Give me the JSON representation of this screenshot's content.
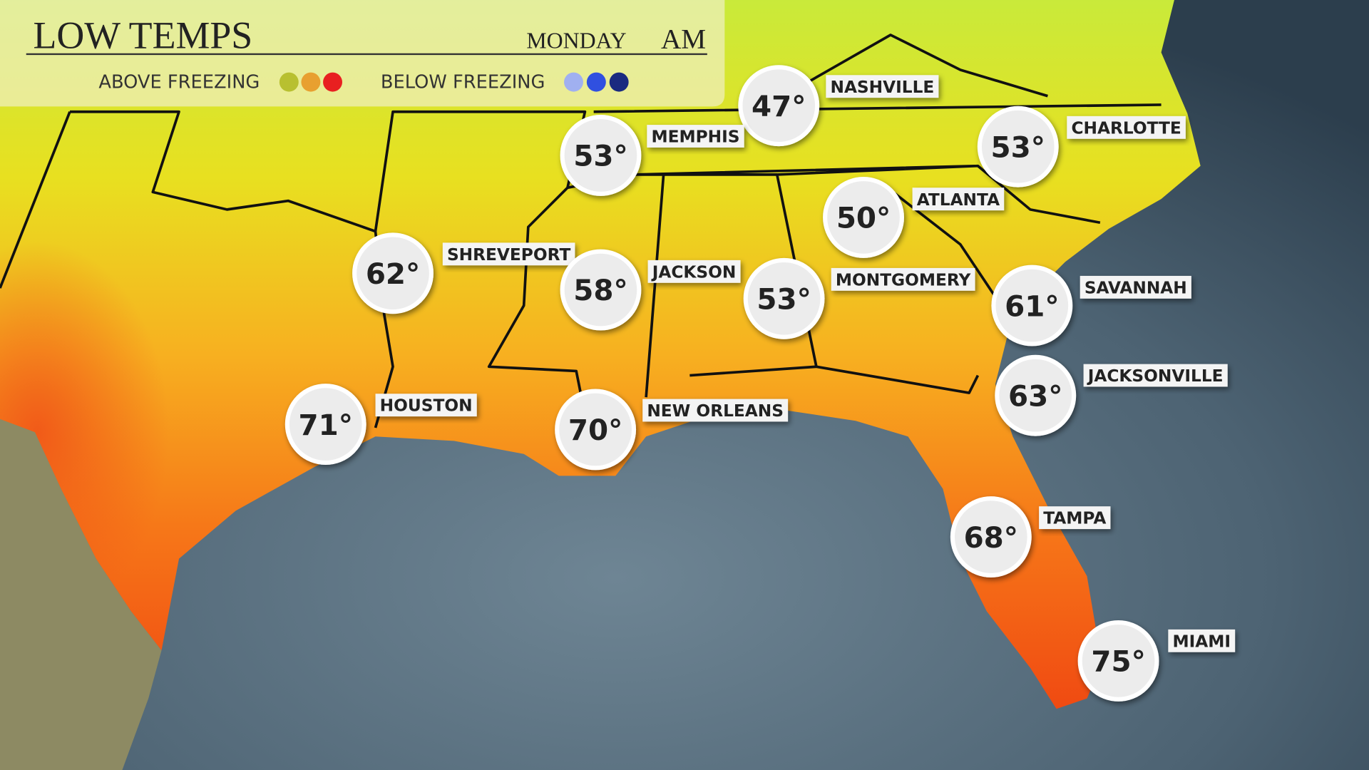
{
  "header": {
    "title": "LOW TEMPS",
    "day": "MONDAY",
    "period": "AM"
  },
  "legend": {
    "above": "ABOVE FREEZING",
    "below": "BELOW FREEZING"
  },
  "cities": [
    {
      "name": "NASHVILLE",
      "temp": "47°"
    },
    {
      "name": "MEMPHIS",
      "temp": "53°"
    },
    {
      "name": "CHARLOTTE",
      "temp": "53°"
    },
    {
      "name": "ATLANTA",
      "temp": "50°"
    },
    {
      "name": "SHREVEPORT",
      "temp": "62°"
    },
    {
      "name": "JACKSON",
      "temp": "58°"
    },
    {
      "name": "MONTGOMERY",
      "temp": "53°"
    },
    {
      "name": "SAVANNAH",
      "temp": "61°"
    },
    {
      "name": "JACKSONVILLE",
      "temp": "63°"
    },
    {
      "name": "HOUSTON",
      "temp": "71°"
    },
    {
      "name": "NEW ORLEANS",
      "temp": "70°"
    },
    {
      "name": "TAMPA",
      "temp": "68°"
    },
    {
      "name": "MIAMI",
      "temp": "75°"
    }
  ]
}
